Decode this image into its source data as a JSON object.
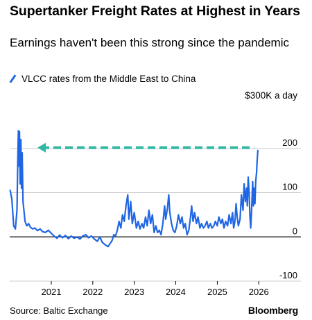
{
  "title": "Supertanker Freight Rates at Highest in Years",
  "subtitle": "Earnings haven't been this strong since the pandemic",
  "legend_label": "VLCC rates from the Middle East to China",
  "unit_label": "$300K a day",
  "source": "Source: Baltic Exchange",
  "brand": "Bloomberg",
  "colors": {
    "series": "#1f66e5",
    "arrow": "#2fb8a3",
    "gridline": "#cccccc",
    "zero_line": "#000000"
  },
  "chart_data": {
    "type": "line",
    "title": "Supertanker Freight Rates at Highest in Years",
    "ylabel": "$300K a day",
    "ylim": [
      -100,
      300
    ],
    "xlim": [
      "2020-01-01",
      "2026-06-01"
    ],
    "grid": true,
    "legend": "top-left",
    "y_ticks": [
      -100,
      0,
      100,
      200
    ],
    "y_tick_labels": [
      "-100",
      "0",
      "100",
      "200"
    ],
    "x_ticks": [
      "2021",
      "2022",
      "2023",
      "2024",
      "2025",
      "2026"
    ],
    "annotation": "dashed arrow pointing left at the 200 level",
    "series": [
      {
        "name": "VLCC rates from the Middle East to China",
        "points": [
          [
            "2020-01-05",
            105
          ],
          [
            "2020-01-20",
            85
          ],
          [
            "2020-02-05",
            25
          ],
          [
            "2020-02-20",
            18
          ],
          [
            "2020-03-05",
            60
          ],
          [
            "2020-03-12",
            170
          ],
          [
            "2020-03-17",
            240
          ],
          [
            "2020-03-22",
            160
          ],
          [
            "2020-03-27",
            238
          ],
          [
            "2020-04-02",
            120
          ],
          [
            "2020-04-08",
            220
          ],
          [
            "2020-04-14",
            110
          ],
          [
            "2020-04-20",
            190
          ],
          [
            "2020-04-27",
            80
          ],
          [
            "2020-05-05",
            60
          ],
          [
            "2020-05-15",
            35
          ],
          [
            "2020-05-30",
            25
          ],
          [
            "2020-06-15",
            30
          ],
          [
            "2020-07-01",
            22
          ],
          [
            "2020-07-20",
            18
          ],
          [
            "2020-08-10",
            20
          ],
          [
            "2020-09-01",
            14
          ],
          [
            "2020-09-25",
            18
          ],
          [
            "2020-10-15",
            12
          ],
          [
            "2020-11-10",
            10
          ],
          [
            "2020-12-05",
            15
          ],
          [
            "2021-01-01",
            8
          ],
          [
            "2021-01-25",
            2
          ],
          [
            "2021-02-20",
            -3
          ],
          [
            "2021-03-15",
            4
          ],
          [
            "2021-04-10",
            -2
          ],
          [
            "2021-05-05",
            3
          ],
          [
            "2021-06-01",
            -4
          ],
          [
            "2021-06-25",
            2
          ],
          [
            "2021-07-20",
            -3
          ],
          [
            "2021-08-15",
            0
          ],
          [
            "2021-09-10",
            -5
          ],
          [
            "2021-10-05",
            2
          ],
          [
            "2021-11-01",
            5
          ],
          [
            "2021-11-25",
            -2
          ],
          [
            "2021-12-20",
            2
          ],
          [
            "2022-01-15",
            -5
          ],
          [
            "2022-02-10",
            -10
          ],
          [
            "2022-03-05",
            0
          ],
          [
            "2022-03-25",
            -12
          ],
          [
            "2022-04-20",
            -18
          ],
          [
            "2022-05-15",
            -22
          ],
          [
            "2022-06-05",
            -14
          ],
          [
            "2022-06-20",
            -8
          ],
          [
            "2022-07-05",
            5
          ],
          [
            "2022-07-20",
            2
          ],
          [
            "2022-08-05",
            15
          ],
          [
            "2022-08-20",
            35
          ],
          [
            "2022-09-05",
            20
          ],
          [
            "2022-09-20",
            50
          ],
          [
            "2022-10-05",
            35
          ],
          [
            "2022-10-20",
            70
          ],
          [
            "2022-11-05",
            95
          ],
          [
            "2022-11-15",
            40
          ],
          [
            "2022-12-01",
            80
          ],
          [
            "2022-12-15",
            30
          ],
          [
            "2023-01-01",
            55
          ],
          [
            "2023-01-20",
            20
          ],
          [
            "2023-02-05",
            35
          ],
          [
            "2023-02-20",
            18
          ],
          [
            "2023-03-10",
            30
          ],
          [
            "2023-03-25",
            20
          ],
          [
            "2023-04-10",
            45
          ],
          [
            "2023-04-25",
            25
          ],
          [
            "2023-05-10",
            60
          ],
          [
            "2023-05-25",
            30
          ],
          [
            "2023-06-10",
            50
          ],
          [
            "2023-06-25",
            10
          ],
          [
            "2023-07-10",
            25
          ],
          [
            "2023-07-25",
            10
          ],
          [
            "2023-08-10",
            15
          ],
          [
            "2023-08-25",
            5
          ],
          [
            "2023-09-10",
            30
          ],
          [
            "2023-09-25",
            70
          ],
          [
            "2023-10-05",
            40
          ],
          [
            "2023-10-20",
            65
          ],
          [
            "2023-11-01",
            95
          ],
          [
            "2023-11-10",
            55
          ],
          [
            "2023-11-25",
            30
          ],
          [
            "2023-12-10",
            15
          ],
          [
            "2023-12-25",
            10
          ],
          [
            "2024-01-10",
            25
          ],
          [
            "2024-01-25",
            50
          ],
          [
            "2024-02-10",
            30
          ],
          [
            "2024-02-25",
            45
          ],
          [
            "2024-03-10",
            20
          ],
          [
            "2024-03-25",
            30
          ],
          [
            "2024-04-10",
            5
          ],
          [
            "2024-04-25",
            15
          ],
          [
            "2024-05-10",
            45
          ],
          [
            "2024-05-20",
            70
          ],
          [
            "2024-06-01",
            35
          ],
          [
            "2024-06-15",
            55
          ],
          [
            "2024-07-01",
            30
          ],
          [
            "2024-07-15",
            45
          ],
          [
            "2024-08-01",
            20
          ],
          [
            "2024-08-15",
            30
          ],
          [
            "2024-09-01",
            20
          ],
          [
            "2024-09-15",
            25
          ],
          [
            "2024-10-01",
            35
          ],
          [
            "2024-10-15",
            20
          ],
          [
            "2024-11-01",
            30
          ],
          [
            "2024-11-15",
            20
          ],
          [
            "2024-12-01",
            25
          ],
          [
            "2024-12-15",
            35
          ],
          [
            "2025-01-01",
            25
          ],
          [
            "2025-01-15",
            45
          ],
          [
            "2025-02-01",
            30
          ],
          [
            "2025-02-15",
            40
          ],
          [
            "2025-03-01",
            20
          ],
          [
            "2025-03-15",
            35
          ],
          [
            "2025-04-01",
            25
          ],
          [
            "2025-04-15",
            50
          ],
          [
            "2025-05-01",
            30
          ],
          [
            "2025-05-15",
            55
          ],
          [
            "2025-05-25",
            20
          ],
          [
            "2025-06-05",
            35
          ],
          [
            "2025-06-15",
            75
          ],
          [
            "2025-06-25",
            45
          ],
          [
            "2025-07-05",
            25
          ],
          [
            "2025-07-20",
            40
          ],
          [
            "2025-08-01",
            95
          ],
          [
            "2025-08-15",
            60
          ],
          [
            "2025-08-25",
            120
          ],
          [
            "2025-09-05",
            80
          ],
          [
            "2025-09-15",
            110
          ],
          [
            "2025-09-22",
            70
          ],
          [
            "2025-09-30",
            135
          ],
          [
            "2025-10-08",
            100
          ],
          [
            "2025-10-15",
            45
          ],
          [
            "2025-10-22",
            20
          ],
          [
            "2025-10-30",
            60
          ],
          [
            "2025-11-08",
            125
          ],
          [
            "2025-11-15",
            70
          ],
          [
            "2025-11-22",
            110
          ],
          [
            "2025-11-28",
            75
          ],
          [
            "2025-12-05",
            125
          ],
          [
            "2025-12-12",
            145
          ],
          [
            "2025-12-18",
            175
          ],
          [
            "2025-12-24",
            195
          ]
        ]
      }
    ]
  }
}
